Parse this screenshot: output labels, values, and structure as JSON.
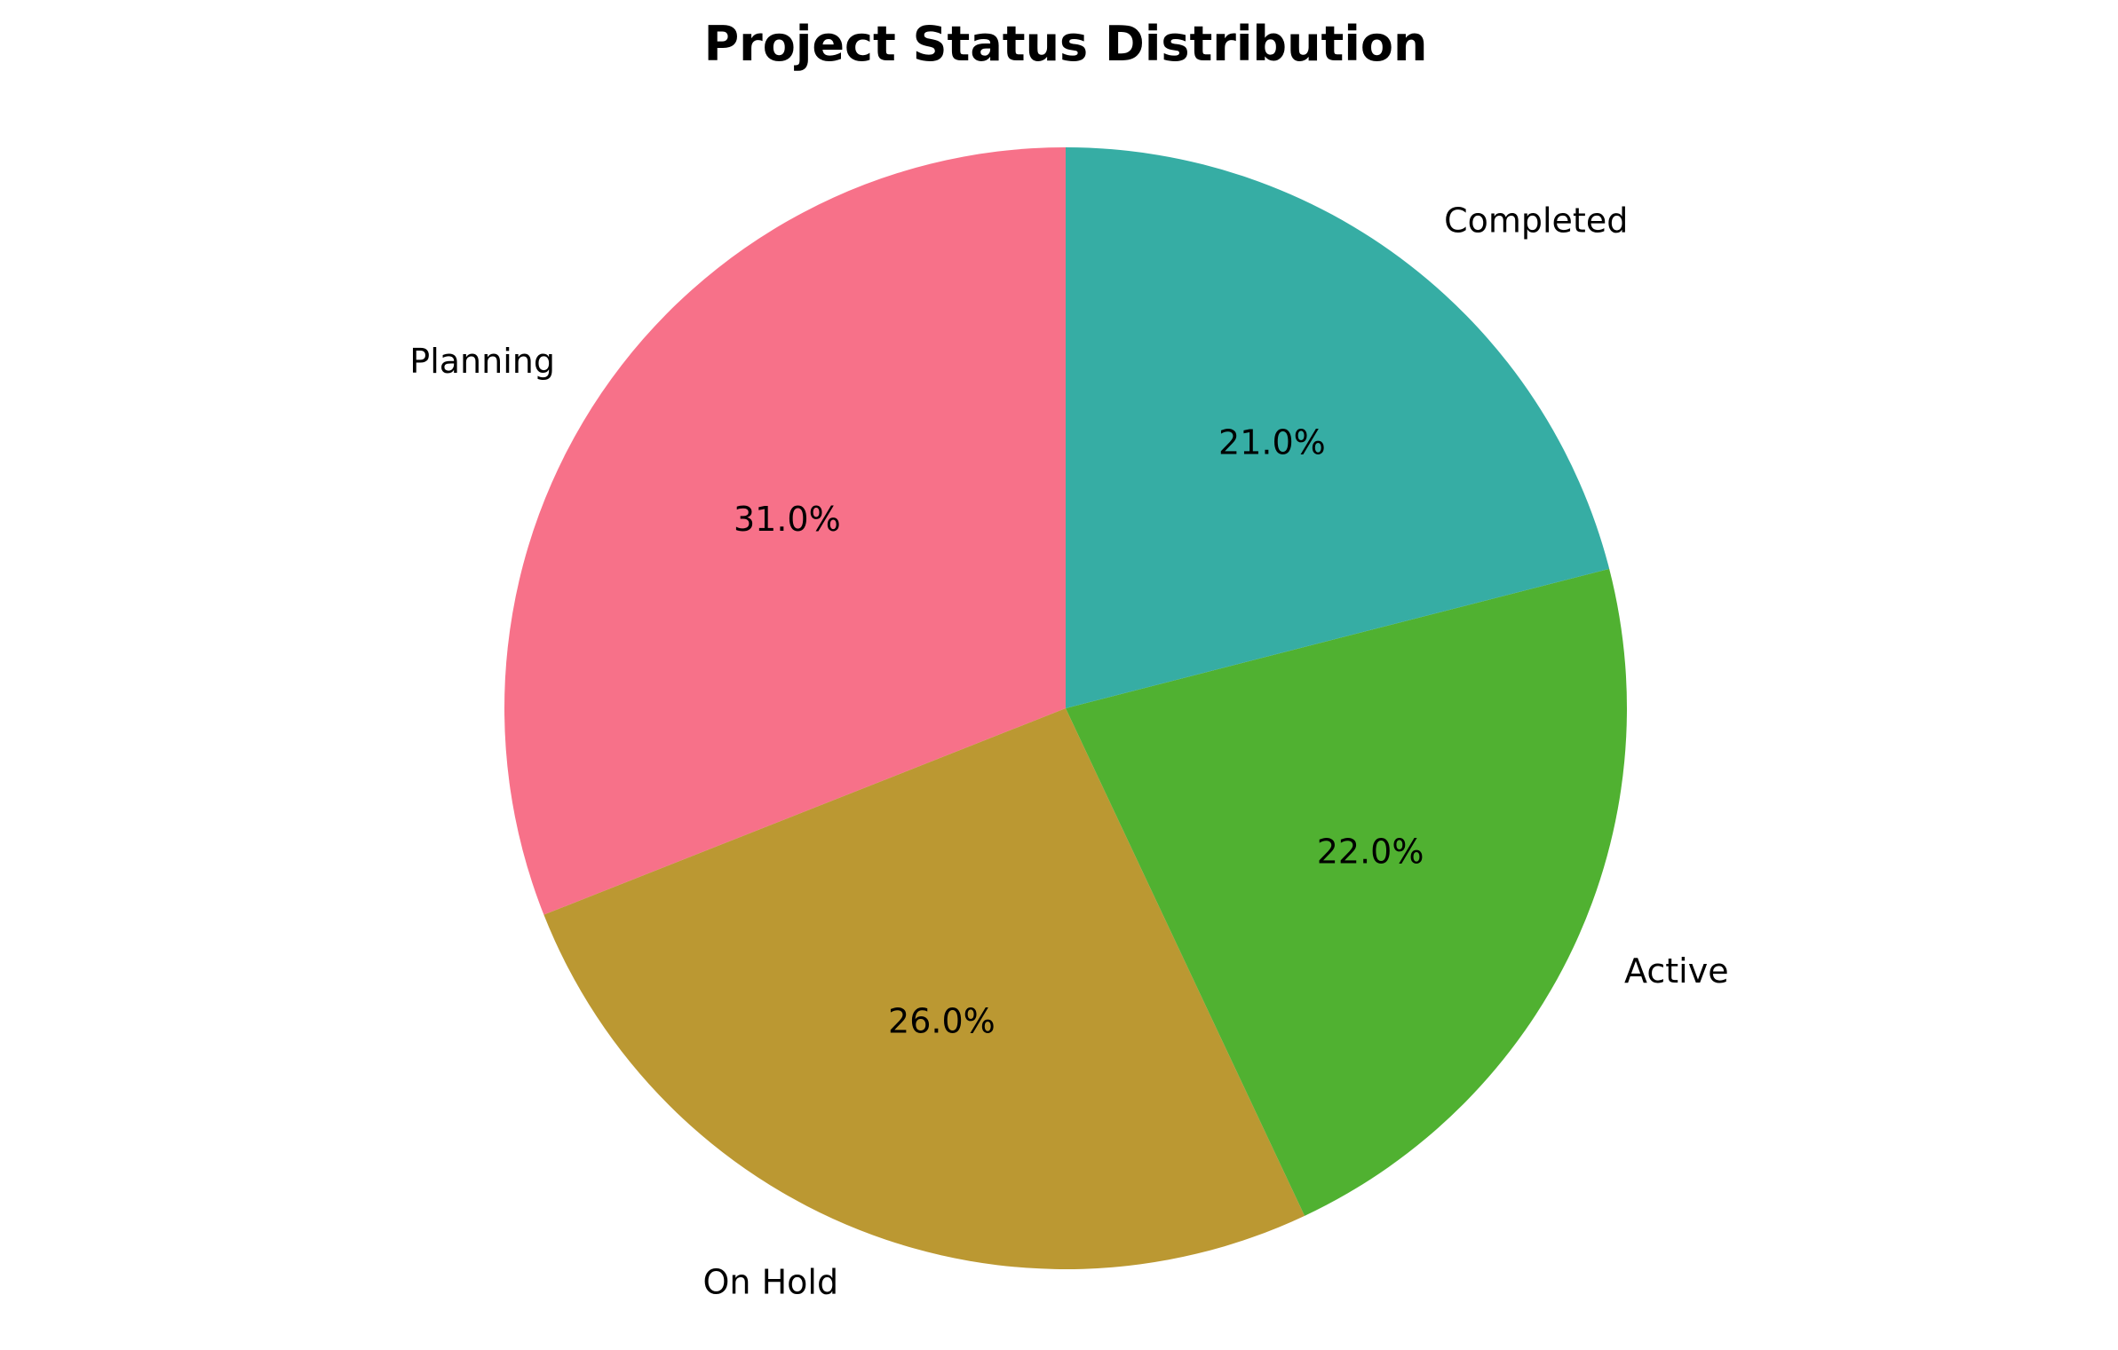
{
  "chart_data": {
    "type": "pie",
    "title": "Project Status Distribution",
    "categories": [
      "Planning",
      "On Hold",
      "Active",
      "Completed"
    ],
    "values": [
      31.0,
      26.0,
      22.0,
      21.0
    ],
    "percent_labels": [
      "31.0%",
      "26.0%",
      "22.0%",
      "21.0%"
    ],
    "colors": [
      "#f77189",
      "#bb9832",
      "#50b131",
      "#36ada4"
    ],
    "start_angle_deg": 90,
    "direction": "counterclockwise",
    "legend": "none"
  }
}
